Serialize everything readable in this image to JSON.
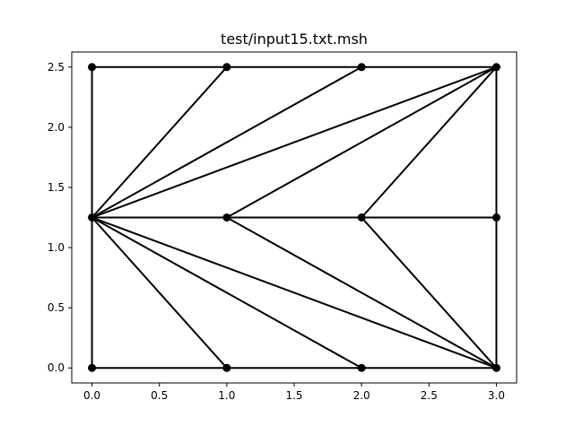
{
  "chart_data": {
    "type": "mesh",
    "title": "test/input15.txt.msh",
    "xlabel": "",
    "ylabel": "",
    "xlim": [
      -0.15,
      3.15
    ],
    "ylim": [
      -0.125,
      2.625
    ],
    "xticks": [
      "0.0",
      "0.5",
      "1.0",
      "1.5",
      "2.0",
      "2.5",
      "3.0"
    ],
    "yticks": [
      "0.0",
      "0.5",
      "1.0",
      "1.5",
      "2.0",
      "2.5"
    ],
    "grid": false,
    "line_color": "#000000",
    "marker_color": "#000000",
    "nodes": [
      {
        "x": 0,
        "y": 0
      },
      {
        "x": 1,
        "y": 0
      },
      {
        "x": 2,
        "y": 0
      },
      {
        "x": 3,
        "y": 0
      },
      {
        "x": 0,
        "y": 1.25
      },
      {
        "x": 1,
        "y": 1.25
      },
      {
        "x": 2,
        "y": 1.25
      },
      {
        "x": 3,
        "y": 1.25
      },
      {
        "x": 0,
        "y": 2.5
      },
      {
        "x": 1,
        "y": 2.5
      },
      {
        "x": 2,
        "y": 2.5
      },
      {
        "x": 3,
        "y": 2.5
      }
    ],
    "edges": [
      [
        0,
        1
      ],
      [
        1,
        2
      ],
      [
        2,
        3
      ],
      [
        8,
        9
      ],
      [
        9,
        10
      ],
      [
        10,
        11
      ],
      [
        0,
        4
      ],
      [
        4,
        8
      ],
      [
        3,
        7
      ],
      [
        7,
        11
      ],
      [
        4,
        5
      ],
      [
        5,
        6
      ],
      [
        6,
        7
      ],
      [
        4,
        9
      ],
      [
        4,
        10
      ],
      [
        4,
        11
      ],
      [
        5,
        11
      ],
      [
        6,
        11
      ],
      [
        4,
        1
      ],
      [
        4,
        2
      ],
      [
        4,
        3
      ],
      [
        5,
        3
      ],
      [
        6,
        3
      ]
    ]
  }
}
